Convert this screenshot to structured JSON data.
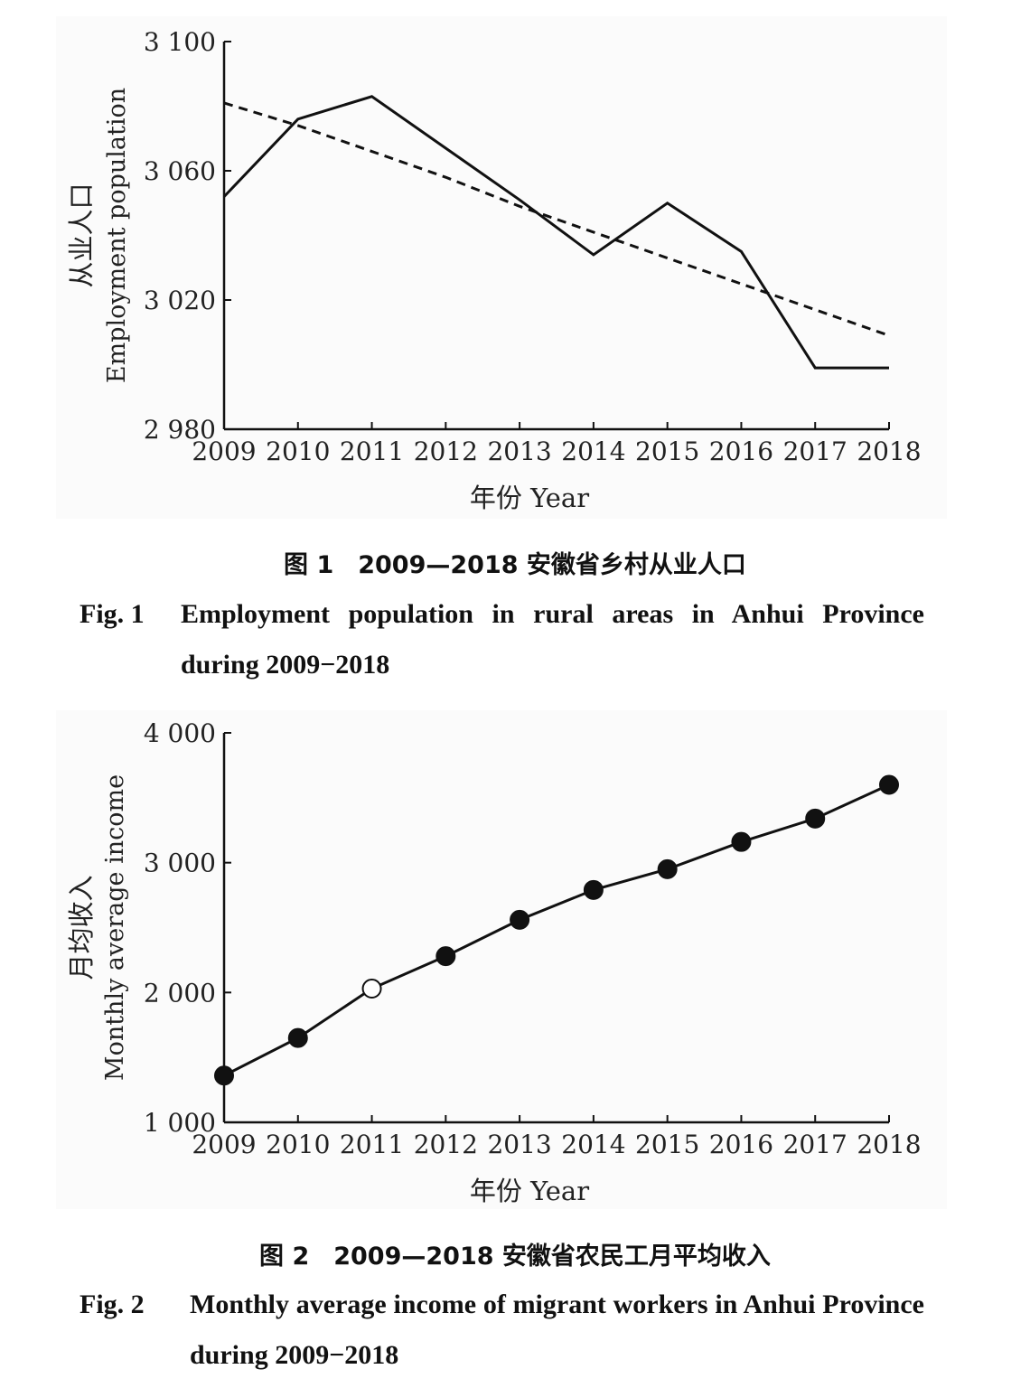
{
  "figures": [
    {
      "chart_data": {
        "type": "line",
        "x": [
          2009,
          2010,
          2011,
          2012,
          2013,
          2014,
          2015,
          2016,
          2017,
          2018
        ],
        "series": [
          {
            "style": "solid",
            "values": [
              3052,
              3076,
              3083,
              3067,
              3051,
              3034,
              3050,
              3035,
              2999,
              2999
            ]
          },
          {
            "style": "dashed-trend",
            "values": [
              3081,
              3074,
              3066,
              3058,
              3049,
              3041,
              3033,
              3025,
              3017,
              3009
            ]
          }
        ],
        "ylim": [
          2980,
          3100
        ],
        "yticks": [
          2980,
          3020,
          3060,
          3100
        ],
        "ytick_labels": [
          "2 980",
          "3 020",
          "3 060",
          "3 100"
        ],
        "xtick_labels": [
          "2009",
          "2010",
          "2011",
          "2012",
          "2013",
          "2014",
          "2015",
          "2016",
          "2017",
          "2018"
        ],
        "xlabel": "年份 Year",
        "ylabel_cn": "从业人口",
        "ylabel_en": "Employment population",
        "grid": false
      },
      "caption_cn": "图 1　2009—2018 安徽省乡村从业人口",
      "caption_en_label": "Fig. 1",
      "caption_en_text": "Employment population in rural areas in Anhui Province during 2009−2018"
    },
    {
      "chart_data": {
        "type": "line",
        "x": [
          2009,
          2010,
          2011,
          2012,
          2013,
          2014,
          2015,
          2016,
          2017,
          2018
        ],
        "series": [
          {
            "style": "solid-markers",
            "values": [
              1360,
              1650,
              2030,
              2280,
              2560,
              2790,
              2950,
              3160,
              3340,
              3600
            ],
            "open_markers": [
              2011
            ]
          }
        ],
        "ylim": [
          1000,
          4000
        ],
        "yticks": [
          1000,
          2000,
          3000,
          4000
        ],
        "ytick_labels": [
          "1 000",
          "2 000",
          "3 000",
          "4 000"
        ],
        "xtick_labels": [
          "2009",
          "2010",
          "2011",
          "2012",
          "2013",
          "2014",
          "2015",
          "2016",
          "2017",
          "2018"
        ],
        "xlabel": "年份 Year",
        "ylabel_cn": "月均收入",
        "ylabel_en": "Monthly average income",
        "grid": false
      },
      "caption_cn": "图 2　2009—2018 安徽省农民工月平均收入",
      "caption_en_label": "Fig. 2",
      "caption_en_text": "Monthly average income of migrant workers in Anhui Province during 2009−2018"
    }
  ]
}
